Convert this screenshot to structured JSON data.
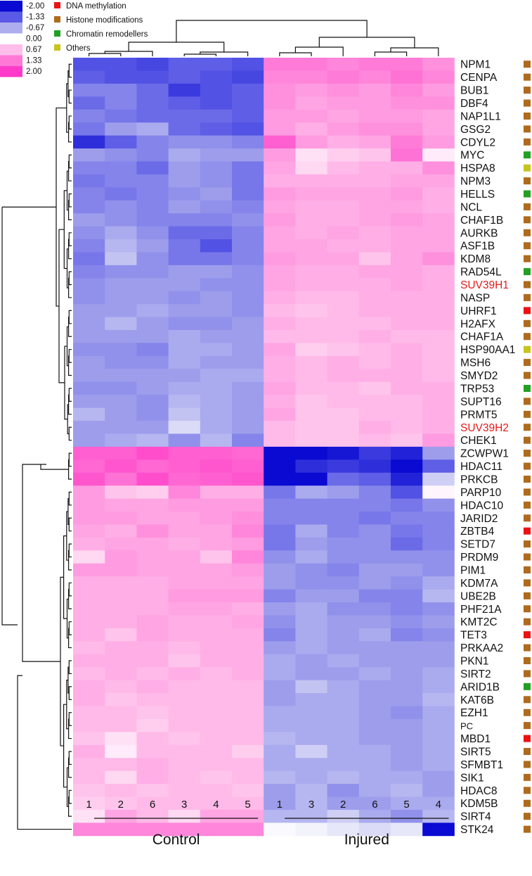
{
  "chart_data": {
    "type": "heatmap",
    "color_scale": {
      "ticks": [
        {
          "label": "-2.00",
          "color": "#0a0ad2"
        },
        {
          "label": "-1.33",
          "color": "#5a5ae6"
        },
        {
          "label": "-0.67",
          "color": "#aeaeee"
        },
        {
          "label": "0.00",
          "color": "#ffffff"
        },
        {
          "label": "0.67",
          "color": "#ffbdea"
        },
        {
          "label": "1.33",
          "color": "#ff78d6"
        },
        {
          "label": "2.00",
          "color": "#ff3ac8"
        }
      ]
    },
    "category_legend": [
      {
        "label": "DNA methylation",
        "color": "#ee1111"
      },
      {
        "label": "Histone modifications",
        "color": "#b06a1c"
      },
      {
        "label": "Chromatin remodellers",
        "color": "#22a022"
      },
      {
        "label": "Others",
        "color": "#c8c41c"
      }
    ],
    "columns": [
      "1",
      "2",
      "6",
      "3",
      "4",
      "5",
      "1",
      "3",
      "2",
      "6",
      "5",
      "4"
    ],
    "groups": [
      {
        "label": "Control",
        "span": [
          0,
          5
        ]
      },
      {
        "label": "Injured",
        "span": [
          6,
          11
        ]
      }
    ],
    "rows": [
      {
        "gene": "NPM1",
        "cat": 1,
        "highlight": false,
        "values": [
          -1.4,
          -1.4,
          -1.5,
          -1.3,
          -1.3,
          -1.4,
          1.3,
          1.3,
          1.2,
          1.3,
          1.3,
          1.1
        ]
      },
      {
        "gene": "CENPA",
        "cat": 1,
        "highlight": false,
        "values": [
          -1.3,
          -1.4,
          -1.4,
          -1.3,
          -1.4,
          -1.5,
          1.2,
          1.2,
          1.3,
          1.2,
          1.4,
          1.2
        ]
      },
      {
        "gene": "BUB1",
        "cat": 1,
        "highlight": false,
        "values": [
          -1.0,
          -1.0,
          -1.2,
          -1.6,
          -1.4,
          -1.3,
          1.1,
          1.0,
          1.1,
          1.0,
          1.2,
          1.0
        ]
      },
      {
        "gene": "DBF4",
        "cat": 1,
        "highlight": false,
        "values": [
          -1.2,
          -1.0,
          -1.2,
          -1.3,
          -1.4,
          -1.3,
          1.1,
          0.9,
          1.0,
          1.0,
          1.1,
          1.1
        ]
      },
      {
        "gene": "NAP1L1",
        "cat": 1,
        "highlight": false,
        "values": [
          -1.0,
          -1.1,
          -1.2,
          -1.2,
          -1.2,
          -1.3,
          1.0,
          1.0,
          0.9,
          1.0,
          1.0,
          0.9
        ]
      },
      {
        "gene": "GSG2",
        "cat": 1,
        "highlight": false,
        "values": [
          -1.1,
          -0.8,
          -0.7,
          -1.2,
          -1.3,
          -1.4,
          1.0,
          0.8,
          1.0,
          1.1,
          1.1,
          0.9
        ]
      },
      {
        "gene": "CDYL2",
        "cat": 1,
        "highlight": false,
        "values": [
          -1.7,
          -1.3,
          -1.0,
          -0.9,
          -0.9,
          -1.0,
          1.6,
          1.0,
          0.8,
          0.9,
          1.3,
          1.0
        ]
      },
      {
        "gene": "MYC",
        "cat": 2,
        "highlight": false,
        "values": [
          -0.8,
          -0.9,
          -1.0,
          -0.7,
          -0.8,
          -0.8,
          1.0,
          0.3,
          0.5,
          0.6,
          1.4,
          0.2
        ]
      },
      {
        "gene": "HSPA8",
        "cat": 3,
        "highlight": false,
        "values": [
          -1.0,
          -1.0,
          -1.2,
          -0.8,
          -0.9,
          -1.1,
          0.9,
          0.4,
          0.7,
          0.8,
          0.8,
          1.1
        ]
      },
      {
        "gene": "NPM3",
        "cat": 1,
        "highlight": false,
        "values": [
          -1.1,
          -1.0,
          -1.0,
          -0.8,
          -0.9,
          -1.1,
          0.8,
          0.8,
          0.8,
          0.8,
          0.9,
          0.9
        ]
      },
      {
        "gene": "HELLS",
        "cat": 2,
        "highlight": false,
        "values": [
          -1.0,
          -1.1,
          -1.0,
          -0.9,
          -0.8,
          -1.1,
          1.0,
          0.9,
          0.9,
          0.9,
          1.0,
          0.8
        ]
      },
      {
        "gene": "NCL",
        "cat": 1,
        "highlight": false,
        "values": [
          -1.0,
          -0.9,
          -1.0,
          -0.8,
          -0.9,
          -1.0,
          0.9,
          0.8,
          0.8,
          0.9,
          0.9,
          0.8
        ]
      },
      {
        "gene": "CHAF1B",
        "cat": 1,
        "highlight": false,
        "values": [
          -0.8,
          -0.9,
          -1.0,
          -1.0,
          -1.0,
          -0.9,
          1.0,
          0.8,
          0.8,
          0.9,
          1.0,
          0.9
        ]
      },
      {
        "gene": "AURKB",
        "cat": 1,
        "highlight": false,
        "values": [
          -0.9,
          -0.7,
          -0.9,
          -1.2,
          -1.2,
          -1.0,
          0.9,
          0.8,
          0.9,
          0.8,
          0.9,
          0.9
        ]
      },
      {
        "gene": "ASF1B",
        "cat": 1,
        "highlight": false,
        "values": [
          -1.0,
          -0.6,
          -0.8,
          -1.1,
          -1.4,
          -1.0,
          0.9,
          0.9,
          0.8,
          0.8,
          0.9,
          0.9
        ]
      },
      {
        "gene": "KDM8",
        "cat": 1,
        "highlight": false,
        "values": [
          -1.1,
          -0.5,
          -0.9,
          -1.1,
          -1.1,
          -1.0,
          1.0,
          0.9,
          0.9,
          0.6,
          0.9,
          1.1
        ]
      },
      {
        "gene": "RAD54L",
        "cat": 2,
        "highlight": false,
        "values": [
          -1.0,
          -0.9,
          -0.9,
          -0.8,
          -0.8,
          -0.9,
          0.9,
          0.8,
          0.8,
          0.9,
          0.9,
          0.8
        ]
      },
      {
        "gene": "SUV39H1",
        "cat": 1,
        "highlight": true,
        "values": [
          -0.9,
          -0.8,
          -0.8,
          -0.8,
          -0.9,
          -0.9,
          0.9,
          0.8,
          0.8,
          0.8,
          0.9,
          0.8
        ]
      },
      {
        "gene": "NASP",
        "cat": 1,
        "highlight": false,
        "values": [
          -0.9,
          -0.8,
          -0.8,
          -0.9,
          -0.8,
          -0.9,
          0.8,
          0.7,
          0.7,
          0.8,
          0.8,
          0.8
        ]
      },
      {
        "gene": "UHRF1",
        "cat": 0,
        "highlight": false,
        "values": [
          -0.8,
          -0.8,
          -0.7,
          -0.8,
          -0.8,
          -0.9,
          0.7,
          0.6,
          0.7,
          0.8,
          0.8,
          0.8
        ]
      },
      {
        "gene": "H2AFX",
        "cat": 1,
        "highlight": false,
        "values": [
          -0.8,
          -0.6,
          -0.8,
          -0.9,
          -0.9,
          -0.8,
          0.8,
          0.7,
          0.7,
          0.7,
          0.8,
          0.8
        ]
      },
      {
        "gene": "CHAF1A",
        "cat": 1,
        "highlight": false,
        "values": [
          -0.8,
          -0.8,
          -0.8,
          -0.7,
          -0.8,
          -0.8,
          0.7,
          0.7,
          0.7,
          0.8,
          0.7,
          0.7
        ]
      },
      {
        "gene": "HSP90AA1",
        "cat": 3,
        "highlight": false,
        "values": [
          -0.9,
          -0.9,
          -1.0,
          -0.7,
          -0.7,
          -0.8,
          0.9,
          0.5,
          0.6,
          0.7,
          0.8,
          0.7
        ]
      },
      {
        "gene": "MSH6",
        "cat": 1,
        "highlight": false,
        "values": [
          -0.8,
          -0.9,
          -0.9,
          -0.7,
          -0.8,
          -0.8,
          0.8,
          0.7,
          0.8,
          0.7,
          0.8,
          0.7
        ]
      },
      {
        "gene": "SMYD2",
        "cat": 1,
        "highlight": false,
        "values": [
          -0.8,
          -0.8,
          -0.8,
          -0.8,
          -0.7,
          -0.7,
          0.8,
          0.7,
          0.8,
          0.8,
          0.8,
          0.7
        ]
      },
      {
        "gene": "TRP53",
        "cat": 2,
        "highlight": false,
        "values": [
          -0.9,
          -0.9,
          -0.8,
          -0.7,
          -0.7,
          -0.8,
          0.9,
          0.7,
          0.7,
          0.6,
          0.8,
          0.8
        ]
      },
      {
        "gene": "SUPT16",
        "cat": 1,
        "highlight": false,
        "values": [
          -0.8,
          -0.8,
          -0.9,
          -0.6,
          -0.7,
          -0.8,
          0.8,
          0.6,
          0.7,
          0.7,
          0.7,
          0.8
        ]
      },
      {
        "gene": "PRMT5",
        "cat": 1,
        "highlight": false,
        "values": [
          -0.6,
          -0.8,
          -0.9,
          -0.5,
          -0.7,
          -0.8,
          0.9,
          0.6,
          0.6,
          0.7,
          0.7,
          0.8
        ]
      },
      {
        "gene": "SUV39H2",
        "cat": 1,
        "highlight": true,
        "values": [
          -0.8,
          -0.8,
          -0.8,
          -0.3,
          -0.7,
          -0.8,
          0.7,
          0.6,
          0.6,
          0.8,
          0.7,
          0.8
        ]
      },
      {
        "gene": "CHEK1",
        "cat": 1,
        "highlight": false,
        "values": [
          -0.8,
          -0.7,
          -0.6,
          -0.9,
          -0.6,
          -1.0,
          0.7,
          0.6,
          0.6,
          0.7,
          0.6,
          1.0
        ]
      },
      {
        "gene": "ZCWPW1",
        "cat": 1,
        "highlight": false,
        "values": [
          1.6,
          1.6,
          1.8,
          1.6,
          1.6,
          1.5,
          -2.0,
          -2.0,
          -1.9,
          -1.6,
          -1.8,
          -0.8
        ]
      },
      {
        "gene": "HDAC11",
        "cat": 1,
        "highlight": false,
        "values": [
          1.5,
          1.7,
          1.5,
          1.6,
          1.7,
          1.6,
          -2.0,
          -1.7,
          -1.6,
          -1.7,
          -2.0,
          -1.3
        ]
      },
      {
        "gene": "PRKCB",
        "cat": 1,
        "highlight": false,
        "values": [
          1.7,
          1.4,
          1.8,
          1.5,
          1.6,
          1.7,
          -2.0,
          -2.0,
          -1.2,
          -1.3,
          -1.8,
          -0.4
        ]
      },
      {
        "gene": "PARP10",
        "cat": 1,
        "highlight": false,
        "values": [
          1.0,
          0.6,
          0.5,
          1.2,
          0.8,
          0.8,
          -1.1,
          -0.7,
          -0.8,
          -1.0,
          -1.4,
          0.1
        ]
      },
      {
        "gene": "HDAC10",
        "cat": 1,
        "highlight": false,
        "values": [
          1.0,
          0.9,
          0.9,
          1.0,
          1.0,
          1.0,
          -1.0,
          -1.0,
          -1.0,
          -1.0,
          -1.1,
          -0.9
        ]
      },
      {
        "gene": "JARID2",
        "cat": 1,
        "highlight": false,
        "values": [
          1.0,
          1.0,
          0.9,
          0.9,
          1.0,
          1.1,
          -1.0,
          -1.0,
          -1.0,
          -1.1,
          -1.0,
          -1.0
        ]
      },
      {
        "gene": "ZBTB4",
        "cat": 0,
        "highlight": false,
        "values": [
          0.9,
          0.8,
          1.1,
          0.9,
          0.9,
          1.2,
          -1.1,
          -0.7,
          -1.0,
          -0.9,
          -1.1,
          -1.0
        ]
      },
      {
        "gene": "SETD7",
        "cat": 1,
        "highlight": false,
        "values": [
          0.8,
          0.9,
          0.9,
          0.8,
          0.9,
          1.0,
          -1.1,
          -0.8,
          -0.9,
          -0.9,
          -1.2,
          -1.0
        ]
      },
      {
        "gene": "PRDM9",
        "cat": 1,
        "highlight": false,
        "values": [
          0.4,
          1.0,
          0.9,
          0.9,
          0.6,
          1.2,
          -0.9,
          -0.7,
          -0.9,
          -0.9,
          -0.9,
          -0.9
        ]
      },
      {
        "gene": "PIM1",
        "cat": 1,
        "highlight": false,
        "values": [
          1.0,
          1.0,
          0.9,
          0.9,
          0.9,
          1.0,
          -0.8,
          -0.9,
          -1.0,
          -0.8,
          -0.8,
          -0.9
        ]
      },
      {
        "gene": "KDM7A",
        "cat": 1,
        "highlight": false,
        "values": [
          0.8,
          0.8,
          0.8,
          0.9,
          0.9,
          0.9,
          -0.8,
          -0.9,
          -0.9,
          -0.8,
          -0.9,
          -0.7
        ]
      },
      {
        "gene": "UBE2B",
        "cat": 1,
        "highlight": false,
        "values": [
          0.8,
          0.8,
          0.8,
          1.0,
          1.0,
          1.0,
          -1.0,
          -0.8,
          -0.8,
          -1.0,
          -1.0,
          -0.6
        ]
      },
      {
        "gene": "PHF21A",
        "cat": 1,
        "highlight": false,
        "values": [
          0.8,
          0.8,
          0.8,
          0.9,
          0.9,
          0.8,
          -0.8,
          -0.7,
          -0.9,
          -0.9,
          -1.0,
          -0.9
        ]
      },
      {
        "gene": "KMT2C",
        "cat": 1,
        "highlight": false,
        "values": [
          0.8,
          0.8,
          0.9,
          0.8,
          0.8,
          0.9,
          -0.9,
          -0.7,
          -0.8,
          -0.8,
          -0.9,
          -0.8
        ]
      },
      {
        "gene": "TET3",
        "cat": 0,
        "highlight": false,
        "values": [
          0.8,
          0.6,
          0.9,
          0.8,
          0.8,
          0.8,
          -1.0,
          -0.7,
          -0.8,
          -0.7,
          -1.0,
          -0.9
        ]
      },
      {
        "gene": "PRKAA2",
        "cat": 1,
        "highlight": false,
        "values": [
          0.7,
          0.8,
          0.8,
          0.7,
          0.8,
          0.8,
          -0.8,
          -0.7,
          -0.8,
          -0.8,
          -0.8,
          -0.8
        ]
      },
      {
        "gene": "PKN1",
        "cat": 1,
        "highlight": false,
        "values": [
          0.8,
          0.8,
          0.8,
          0.6,
          0.8,
          0.8,
          -0.7,
          -0.8,
          -0.7,
          -0.8,
          -0.8,
          -0.8
        ]
      },
      {
        "gene": "SIRT2",
        "cat": 1,
        "highlight": false,
        "values": [
          0.7,
          0.8,
          0.7,
          0.8,
          0.7,
          0.8,
          -0.7,
          -0.8,
          -0.8,
          -0.7,
          -0.8,
          -0.7
        ]
      },
      {
        "gene": "ARID1B",
        "cat": 2,
        "highlight": false,
        "values": [
          0.8,
          0.7,
          0.8,
          0.7,
          0.7,
          0.7,
          -0.8,
          -0.5,
          -0.7,
          -0.8,
          -0.8,
          -0.7
        ]
      },
      {
        "gene": "KAT6B",
        "cat": 1,
        "highlight": false,
        "values": [
          0.8,
          0.6,
          0.7,
          0.7,
          0.7,
          0.7,
          -0.8,
          -0.7,
          -0.7,
          -0.8,
          -0.8,
          -0.6
        ]
      },
      {
        "gene": "EZH1",
        "cat": 1,
        "highlight": false,
        "values": [
          0.7,
          0.7,
          0.6,
          0.7,
          0.7,
          0.7,
          -0.7,
          -0.7,
          -0.7,
          -0.8,
          -0.9,
          -0.7
        ]
      },
      {
        "gene": "PC",
        "cat": 1,
        "highlight": false,
        "values": [
          0.7,
          0.7,
          0.5,
          0.7,
          0.7,
          0.7,
          -0.7,
          -0.7,
          -0.7,
          -0.8,
          -0.8,
          -0.7
        ]
      },
      {
        "gene": "MBD1",
        "cat": 0,
        "highlight": false,
        "values": [
          0.6,
          0.3,
          0.7,
          0.6,
          0.7,
          0.7,
          -0.6,
          -0.7,
          -0.7,
          -0.8,
          -0.8,
          -0.7
        ]
      },
      {
        "gene": "SIRT5",
        "cat": 1,
        "highlight": false,
        "values": [
          0.8,
          0.2,
          0.7,
          0.7,
          0.7,
          0.5,
          -0.7,
          -0.4,
          -0.7,
          -0.7,
          -0.8,
          -0.7
        ]
      },
      {
        "gene": "SFMBT1",
        "cat": 1,
        "highlight": false,
        "values": [
          0.7,
          0.7,
          0.8,
          0.7,
          0.7,
          0.7,
          -0.7,
          -0.7,
          -0.7,
          -0.7,
          -0.8,
          -0.7
        ]
      },
      {
        "gene": "SIK1",
        "cat": 1,
        "highlight": false,
        "values": [
          0.7,
          0.4,
          0.8,
          0.7,
          0.6,
          0.7,
          -0.6,
          -0.7,
          -0.6,
          -0.7,
          -0.7,
          -0.8
        ]
      },
      {
        "gene": "HDAC8",
        "cat": 1,
        "highlight": false,
        "values": [
          0.6,
          0.7,
          0.6,
          0.7,
          0.7,
          0.6,
          -0.8,
          -0.6,
          -0.9,
          -0.7,
          -0.6,
          -0.8
        ]
      },
      {
        "gene": "KDM5B",
        "cat": 1,
        "highlight": false,
        "values": [
          0.5,
          0.6,
          0.7,
          0.7,
          0.7,
          0.7,
          -0.8,
          -0.6,
          -0.8,
          -0.8,
          -0.7,
          -0.7
        ]
      },
      {
        "gene": "SIRT4",
        "cat": 1,
        "highlight": false,
        "values": [
          0.3,
          0.9,
          0.7,
          0.4,
          0.9,
          0.9,
          -0.6,
          -0.6,
          -0.4,
          -0.7,
          -0.9,
          -0.6
        ]
      },
      {
        "gene": "STK24",
        "cat": 1,
        "highlight": false,
        "values": [
          1.2,
          1.2,
          1.2,
          1.2,
          1.2,
          1.2,
          -0.05,
          -0.1,
          -0.2,
          -0.3,
          -0.2,
          -2.0
        ]
      }
    ]
  }
}
